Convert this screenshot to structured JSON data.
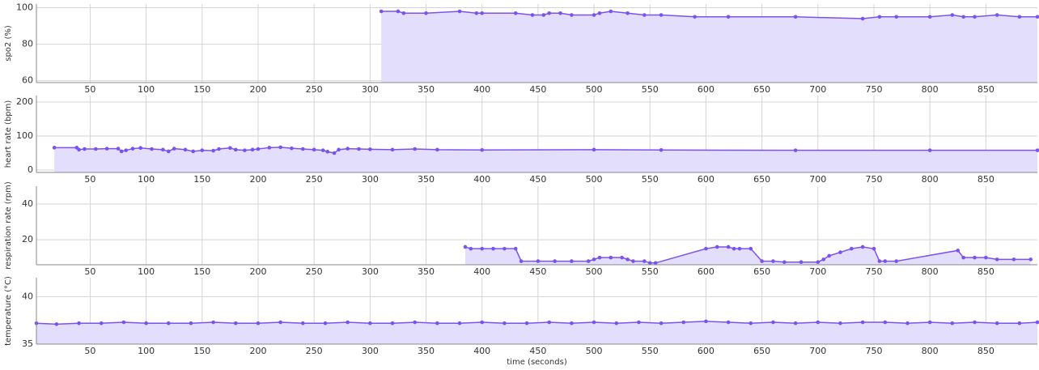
{
  "chart_data": [
    {
      "type": "line",
      "ylabel": "spo2 (%)",
      "color": "#7b52f0",
      "fill": "#e4defd",
      "x": [
        310,
        325,
        330,
        350,
        380,
        395,
        400,
        430,
        445,
        455,
        460,
        470,
        480,
        500,
        505,
        515,
        530,
        545,
        560,
        590,
        620,
        680,
        740,
        755,
        770,
        800,
        820,
        830,
        840,
        860,
        880,
        896
      ],
      "values": [
        98,
        98,
        97,
        97,
        98,
        97,
        97,
        97,
        96,
        96,
        97,
        97,
        96,
        96,
        97,
        98,
        97,
        96,
        96,
        95,
        95,
        95,
        94,
        95,
        95,
        95,
        96,
        95,
        95,
        96,
        95,
        95
      ],
      "xlim": [
        2,
        896
      ],
      "ylim": [
        59,
        102
      ],
      "xticks": [
        50,
        100,
        150,
        200,
        250,
        300,
        350,
        400,
        450,
        500,
        550,
        600,
        650,
        700,
        750,
        800,
        850
      ],
      "yticks": [
        60,
        80,
        100
      ],
      "grid": true
    },
    {
      "type": "line",
      "ylabel": "heart rate (bpm)",
      "color": "#7b52f0",
      "fill": "#e4defd",
      "x": [
        18,
        38,
        40,
        45,
        55,
        65,
        75,
        78,
        82,
        88,
        95,
        105,
        115,
        120,
        125,
        135,
        142,
        150,
        160,
        165,
        175,
        180,
        188,
        195,
        200,
        210,
        220,
        230,
        240,
        250,
        258,
        262,
        268,
        272,
        280,
        290,
        300,
        320,
        340,
        360,
        400,
        500,
        560,
        680,
        800,
        896
      ],
      "values": [
        66,
        66,
        60,
        62,
        62,
        63,
        63,
        55,
        58,
        63,
        65,
        62,
        60,
        55,
        63,
        60,
        55,
        58,
        57,
        62,
        65,
        60,
        58,
        60,
        62,
        66,
        67,
        64,
        62,
        60,
        58,
        54,
        50,
        60,
        63,
        62,
        61,
        60,
        62,
        60,
        59,
        60,
        59,
        58,
        58,
        58
      ],
      "xlim": [
        2,
        896
      ],
      "ylim": [
        -7,
        219
      ],
      "xticks": [
        50,
        100,
        150,
        200,
        250,
        300,
        350,
        400,
        450,
        500,
        550,
        600,
        650,
        700,
        750,
        800,
        850
      ],
      "yticks": [
        0,
        100,
        200
      ],
      "grid": true
    },
    {
      "type": "line",
      "ylabel": "respiration rate (rpm)",
      "color": "#7b52f0",
      "fill": "#e4defd",
      "x": [
        385,
        390,
        400,
        410,
        420,
        430,
        435,
        450,
        465,
        480,
        495,
        500,
        505,
        515,
        525,
        530,
        535,
        545,
        550,
        555,
        600,
        610,
        620,
        625,
        630,
        640,
        650,
        660,
        670,
        685,
        700,
        705,
        710,
        720,
        730,
        740,
        750,
        755,
        760,
        770,
        825,
        830,
        840,
        850,
        860,
        875,
        890
      ],
      "values": [
        16,
        15,
        15,
        15,
        15,
        15,
        8,
        8,
        8,
        8,
        8,
        9,
        10,
        10,
        10,
        9,
        8,
        8,
        7,
        7,
        15,
        16,
        16,
        15,
        15,
        15,
        8,
        8,
        7.5,
        7.5,
        7.5,
        9,
        11,
        13,
        15,
        16,
        15,
        8,
        8,
        8,
        14,
        10,
        10,
        10,
        9,
        9,
        9
      ],
      "xlim": [
        2,
        896
      ],
      "ylim": [
        6,
        50
      ],
      "xticks": [
        50,
        100,
        150,
        200,
        250,
        300,
        350,
        400,
        450,
        500,
        550,
        600,
        650,
        700,
        750,
        800,
        850
      ],
      "yticks": [
        20,
        40
      ],
      "grid": true
    },
    {
      "type": "line",
      "ylabel": "temperature (°C)",
      "xlabel": "time (seconds)",
      "color": "#7b52f0",
      "fill": "#e4defd",
      "x": [
        2,
        20,
        40,
        60,
        80,
        100,
        120,
        140,
        160,
        180,
        200,
        220,
        240,
        260,
        280,
        300,
        320,
        340,
        360,
        380,
        400,
        420,
        440,
        460,
        480,
        500,
        520,
        540,
        560,
        580,
        600,
        620,
        640,
        660,
        680,
        700,
        720,
        740,
        760,
        780,
        800,
        820,
        840,
        860,
        880,
        896
      ],
      "values": [
        37.2,
        37.1,
        37.2,
        37.2,
        37.3,
        37.2,
        37.2,
        37.2,
        37.3,
        37.2,
        37.2,
        37.3,
        37.2,
        37.2,
        37.3,
        37.2,
        37.2,
        37.3,
        37.2,
        37.2,
        37.3,
        37.2,
        37.2,
        37.3,
        37.2,
        37.3,
        37.2,
        37.3,
        37.2,
        37.3,
        37.4,
        37.3,
        37.2,
        37.3,
        37.2,
        37.3,
        37.2,
        37.3,
        37.3,
        37.2,
        37.3,
        37.2,
        37.3,
        37.2,
        37.2,
        37.3
      ],
      "xlim": [
        2,
        896
      ],
      "ylim": [
        35,
        42
      ],
      "xticks": [
        50,
        100,
        150,
        200,
        250,
        300,
        350,
        400,
        450,
        500,
        550,
        600,
        650,
        700,
        750,
        800,
        850
      ],
      "yticks": [
        35,
        40
      ],
      "grid": true
    }
  ]
}
